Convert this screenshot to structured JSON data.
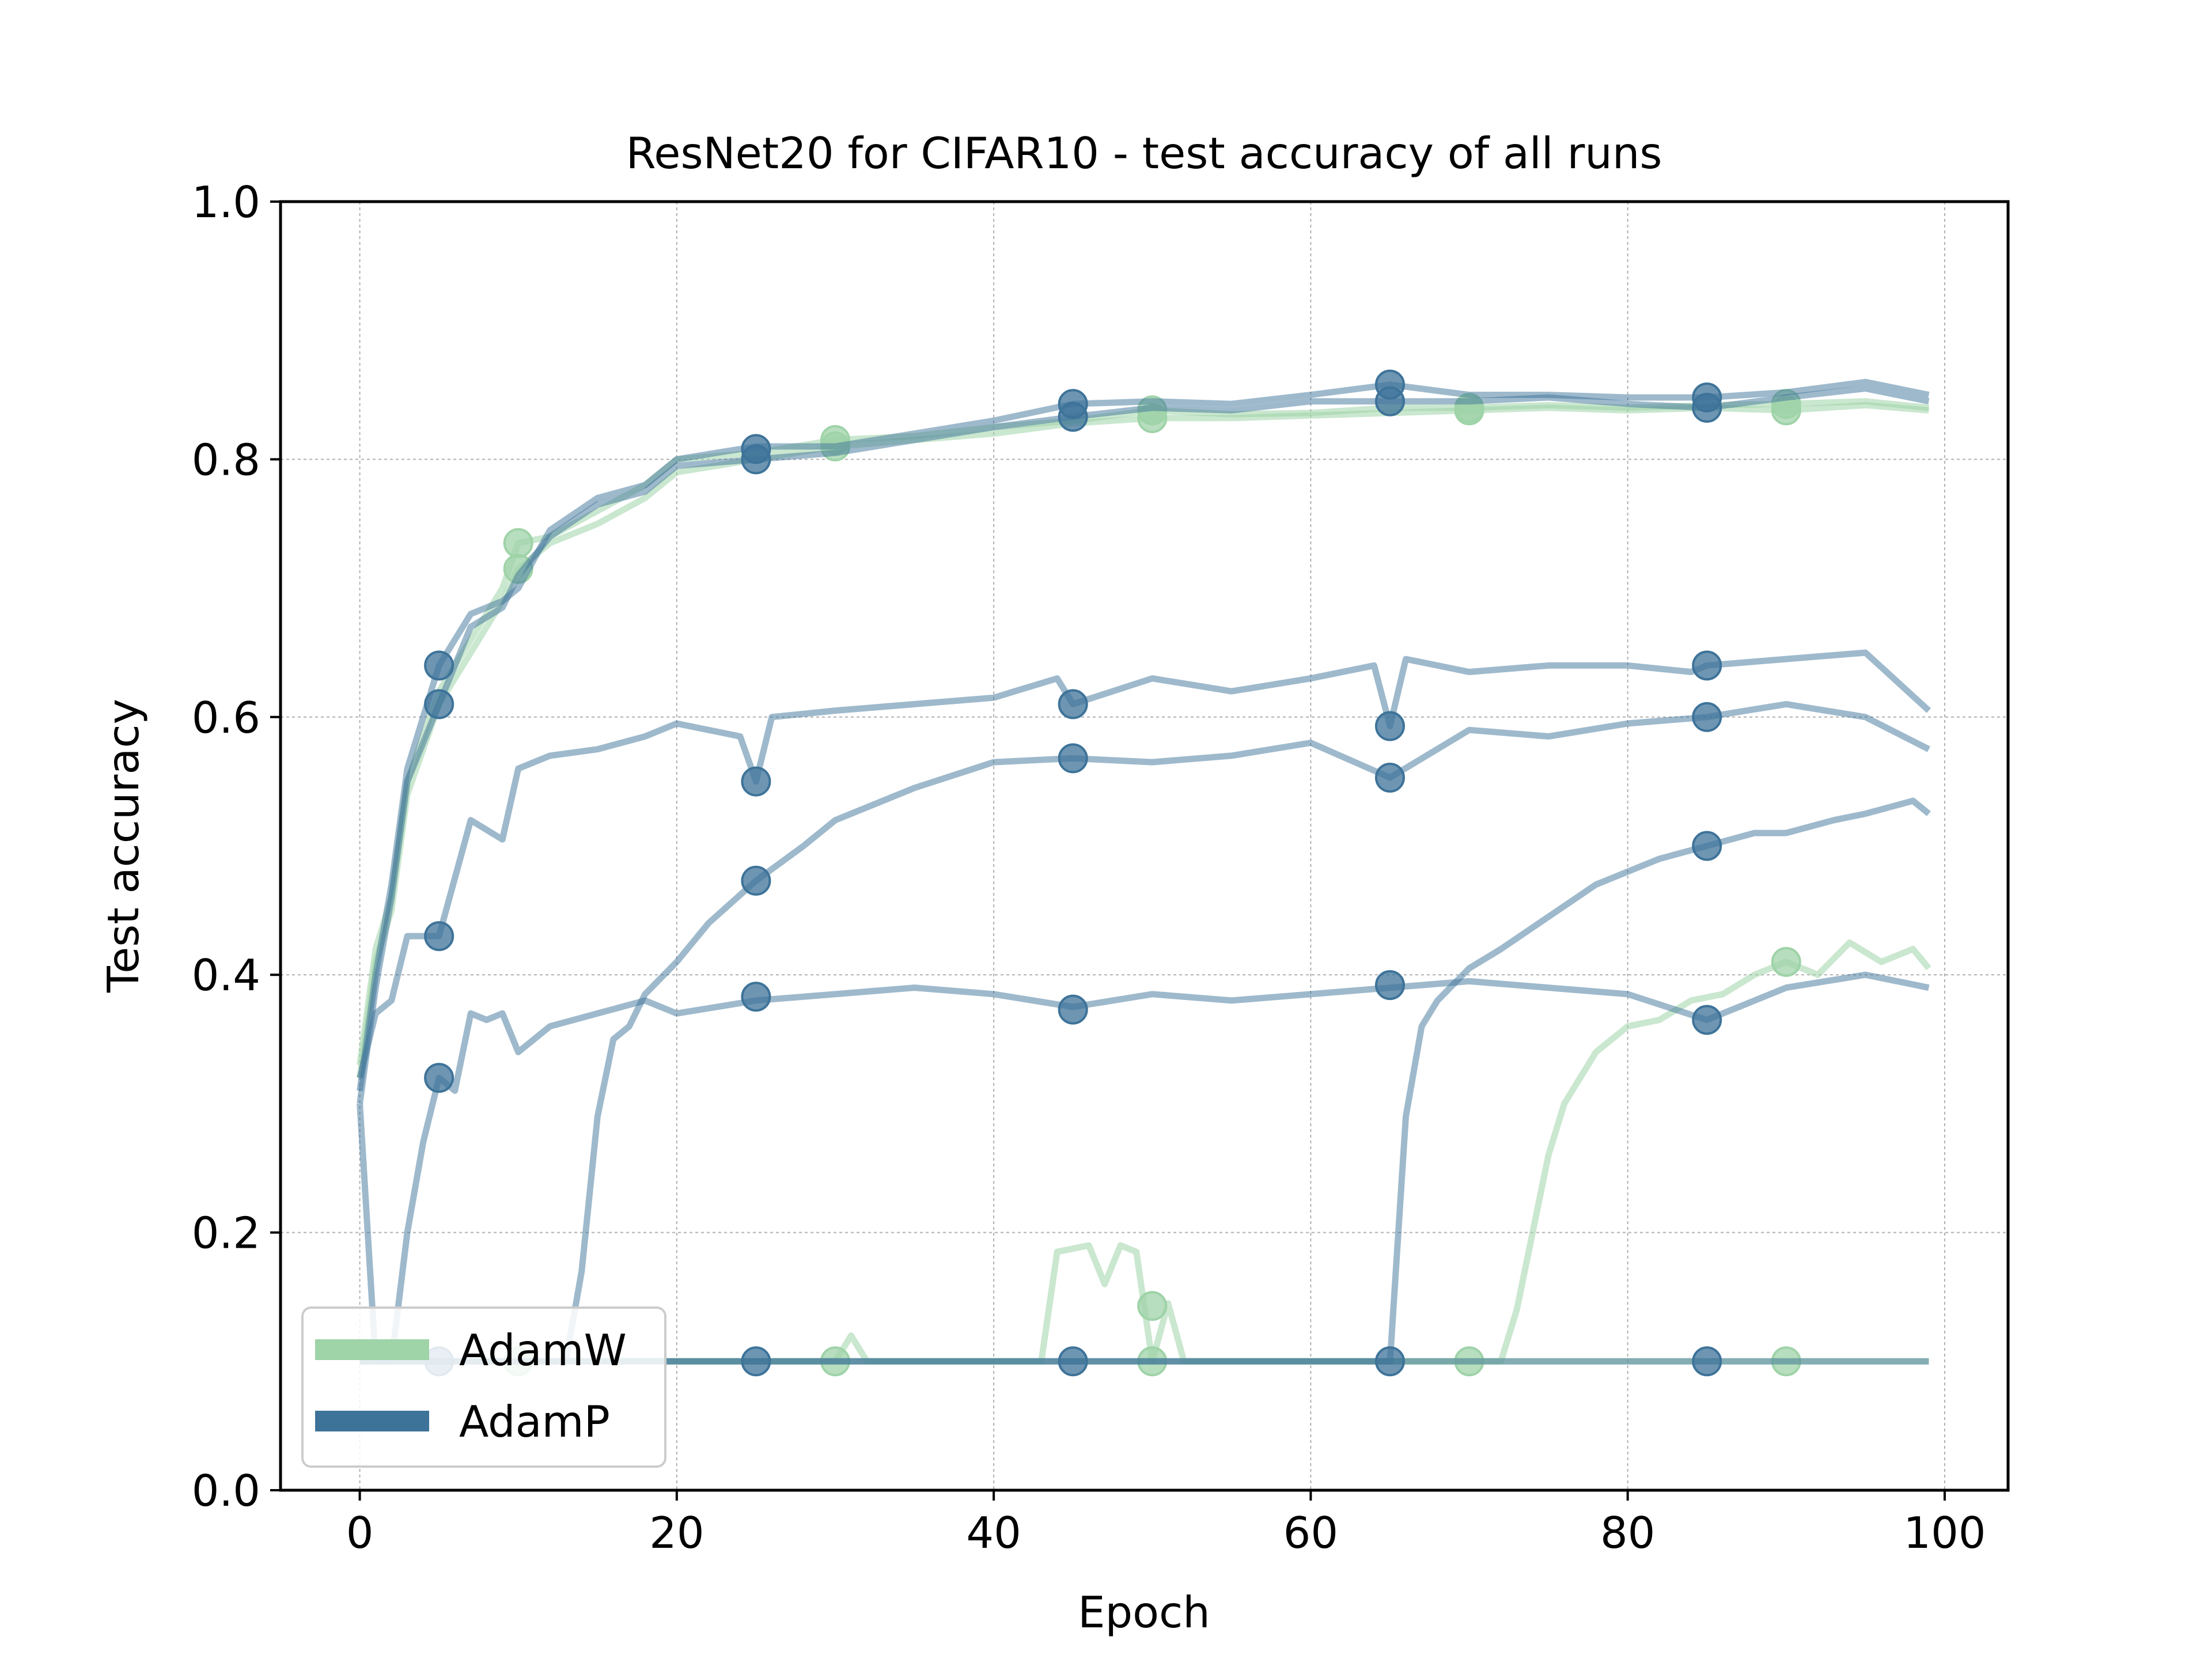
{
  "chart_data": {
    "type": "line",
    "title": "ResNet20 for CIFAR10 - test accuracy of all runs",
    "xlabel": "Epoch",
    "ylabel": "Test accuracy",
    "xlim": [
      -5,
      104
    ],
    "ylim": [
      0.0,
      1.0
    ],
    "xticks": [
      0,
      20,
      40,
      60,
      80,
      100
    ],
    "yticks": [
      0.0,
      0.2,
      0.4,
      0.6,
      0.8,
      1.0
    ],
    "xtick_labels": [
      "0",
      "20",
      "40",
      "60",
      "80",
      "100"
    ],
    "ytick_labels": [
      "0.0",
      "0.2",
      "0.4",
      "0.6",
      "0.8",
      "1.0"
    ],
    "grid": true,
    "legend_position": "lower-left",
    "legend": [
      {
        "name": "AdamW",
        "color": "#9fd3a8"
      },
      {
        "name": "AdamP",
        "color": "#3e7399"
      }
    ],
    "series": [
      {
        "group": "AdamW",
        "color": "#9fd3a8",
        "x": [
          0,
          1,
          2,
          3,
          5,
          7,
          9,
          10,
          12,
          15,
          18,
          20,
          25,
          30,
          35,
          40,
          45,
          50,
          55,
          60,
          65,
          70,
          75,
          80,
          85,
          90,
          95,
          99
        ],
        "y": [
          0.33,
          0.42,
          0.46,
          0.55,
          0.62,
          0.66,
          0.7,
          0.735,
          0.74,
          0.76,
          0.78,
          0.8,
          0.805,
          0.815,
          0.818,
          0.825,
          0.83,
          0.838,
          0.835,
          0.836,
          0.84,
          0.84,
          0.842,
          0.84,
          0.842,
          0.843,
          0.845,
          0.84
        ],
        "markers_x": [
          10,
          30,
          50,
          70,
          90
        ],
        "markers_y": [
          0.735,
          0.815,
          0.838,
          0.84,
          0.843
        ]
      },
      {
        "group": "AdamW",
        "color": "#9fd3a8",
        "x": [
          0,
          1,
          2,
          3,
          5,
          7,
          9,
          10,
          12,
          15,
          18,
          20,
          25,
          30,
          35,
          40,
          45,
          50,
          55,
          60,
          65,
          70,
          75,
          80,
          85,
          90,
          95,
          99
        ],
        "y": [
          0.32,
          0.41,
          0.45,
          0.54,
          0.61,
          0.65,
          0.69,
          0.715,
          0.735,
          0.75,
          0.77,
          0.79,
          0.8,
          0.81,
          0.815,
          0.82,
          0.828,
          0.832,
          0.832,
          0.834,
          0.836,
          0.838,
          0.84,
          0.838,
          0.84,
          0.838,
          0.842,
          0.838
        ],
        "markers_x": [
          10,
          30,
          50,
          70,
          90
        ],
        "markers_y": [
          0.715,
          0.81,
          0.832,
          0.838,
          0.838
        ]
      },
      {
        "group": "AdamW",
        "color": "#9fd3a8",
        "x": [
          0,
          5,
          10,
          20,
          30,
          31,
          32,
          40,
          43,
          44,
          46,
          47,
          48,
          49,
          50,
          51,
          52,
          60,
          72,
          73,
          74,
          75,
          76,
          78,
          80,
          82,
          84,
          86,
          88,
          90,
          92,
          94,
          96,
          98,
          99
        ],
        "y": [
          0.1,
          0.1,
          0.1,
          0.1,
          0.1,
          0.12,
          0.1,
          0.1,
          0.1,
          0.185,
          0.19,
          0.16,
          0.19,
          0.185,
          0.1,
          0.145,
          0.1,
          0.1,
          0.1,
          0.14,
          0.2,
          0.26,
          0.3,
          0.34,
          0.36,
          0.365,
          0.38,
          0.385,
          0.4,
          0.41,
          0.4,
          0.425,
          0.41,
          0.42,
          0.405
        ],
        "markers_x": [
          50,
          90
        ],
        "markers_y": [
          0.143,
          0.41
        ]
      },
      {
        "group": "AdamW",
        "color": "#9fd3a8",
        "x": [
          0,
          99
        ],
        "y": [
          0.1,
          0.1
        ],
        "markers_x": [
          10,
          30,
          50,
          70,
          90
        ],
        "markers_y": [
          0.1,
          0.1,
          0.1,
          0.1,
          0.1
        ]
      },
      {
        "group": "AdamP",
        "color": "#3e7399",
        "x": [
          0,
          1,
          2,
          3,
          5,
          7,
          9,
          10,
          12,
          15,
          18,
          20,
          25,
          30,
          35,
          40,
          45,
          50,
          55,
          60,
          65,
          70,
          75,
          80,
          85,
          90,
          95,
          99
        ],
        "y": [
          0.31,
          0.4,
          0.47,
          0.56,
          0.64,
          0.68,
          0.69,
          0.7,
          0.745,
          0.77,
          0.78,
          0.8,
          0.81,
          0.81,
          0.82,
          0.83,
          0.843,
          0.845,
          0.843,
          0.85,
          0.858,
          0.85,
          0.85,
          0.848,
          0.848,
          0.852,
          0.86,
          0.85
        ],
        "markers_x": [
          5,
          25,
          45,
          65,
          85
        ],
        "markers_y": [
          0.64,
          0.808,
          0.843,
          0.858,
          0.848
        ]
      },
      {
        "group": "AdamP",
        "color": "#3e7399",
        "x": [
          0,
          1,
          2,
          3,
          5,
          7,
          9,
          10,
          12,
          15,
          18,
          20,
          25,
          30,
          35,
          40,
          45,
          50,
          55,
          60,
          65,
          70,
          75,
          80,
          85,
          90,
          95,
          99
        ],
        "y": [
          0.3,
          0.39,
          0.46,
          0.55,
          0.61,
          0.67,
          0.685,
          0.71,
          0.74,
          0.765,
          0.775,
          0.795,
          0.8,
          0.805,
          0.815,
          0.825,
          0.833,
          0.84,
          0.838,
          0.845,
          0.845,
          0.845,
          0.848,
          0.843,
          0.84,
          0.848,
          0.855,
          0.845
        ],
        "markers_x": [
          5,
          25,
          45,
          65,
          85
        ],
        "markers_y": [
          0.61,
          0.8,
          0.833,
          0.845,
          0.84
        ]
      },
      {
        "group": "AdamP",
        "color": "#3e7399",
        "x": [
          0,
          1,
          2,
          3,
          5,
          7,
          9,
          10,
          12,
          15,
          18,
          20,
          24,
          25,
          26,
          30,
          35,
          40,
          44,
          45,
          50,
          55,
          60,
          64,
          65,
          66,
          70,
          75,
          80,
          84,
          85,
          90,
          95,
          99
        ],
        "y": [
          0.32,
          0.37,
          0.38,
          0.43,
          0.43,
          0.52,
          0.505,
          0.56,
          0.57,
          0.575,
          0.585,
          0.595,
          0.585,
          0.55,
          0.6,
          0.605,
          0.61,
          0.615,
          0.63,
          0.61,
          0.63,
          0.62,
          0.63,
          0.64,
          0.593,
          0.645,
          0.635,
          0.64,
          0.64,
          0.635,
          0.64,
          0.645,
          0.65,
          0.605
        ],
        "markers_x": [
          5,
          25,
          45,
          65,
          85
        ],
        "markers_y": [
          0.43,
          0.55,
          0.61,
          0.593,
          0.64
        ]
      },
      {
        "group": "AdamP",
        "color": "#3e7399",
        "x": [
          0,
          1,
          2,
          3,
          4,
          5,
          6,
          7,
          8,
          9,
          10,
          12,
          15,
          18,
          20,
          25,
          30,
          35,
          40,
          45,
          50,
          55,
          60,
          65,
          70,
          75,
          80,
          85,
          90,
          95,
          99
        ],
        "y": [
          0.3,
          0.1,
          0.1,
          0.2,
          0.27,
          0.32,
          0.31,
          0.37,
          0.365,
          0.37,
          0.34,
          0.36,
          0.37,
          0.38,
          0.37,
          0.38,
          0.385,
          0.39,
          0.385,
          0.375,
          0.385,
          0.38,
          0.385,
          0.39,
          0.395,
          0.39,
          0.385,
          0.365,
          0.39,
          0.4,
          0.39
        ],
        "markers_x": [
          5,
          25,
          45,
          65,
          85
        ],
        "markers_y": [
          0.32,
          0.383,
          0.373,
          0.392,
          0.365
        ]
      },
      {
        "group": "AdamP",
        "color": "#3e7399",
        "x": [
          0,
          5,
          13,
          14,
          15,
          16,
          17,
          18,
          20,
          22,
          25,
          28,
          30,
          35,
          40,
          45,
          50,
          55,
          60,
          65,
          70,
          75,
          80,
          85,
          90,
          95,
          99
        ],
        "y": [
          0.1,
          0.1,
          0.1,
          0.17,
          0.29,
          0.35,
          0.36,
          0.385,
          0.41,
          0.44,
          0.473,
          0.5,
          0.52,
          0.545,
          0.565,
          0.568,
          0.565,
          0.57,
          0.58,
          0.553,
          0.59,
          0.585,
          0.595,
          0.6,
          0.61,
          0.6,
          0.575
        ],
        "markers_x": [
          25,
          45,
          65,
          85
        ],
        "markers_y": [
          0.473,
          0.568,
          0.553,
          0.6
        ]
      },
      {
        "group": "AdamP",
        "color": "#3e7399",
        "x": [
          0,
          65,
          66,
          67,
          68,
          70,
          72,
          75,
          78,
          80,
          82,
          85,
          88,
          90,
          93,
          95,
          98,
          99
        ],
        "y": [
          0.1,
          0.1,
          0.29,
          0.36,
          0.38,
          0.405,
          0.42,
          0.445,
          0.47,
          0.48,
          0.49,
          0.5,
          0.51,
          0.51,
          0.52,
          0.525,
          0.535,
          0.525
        ],
        "markers_x": [
          65,
          85
        ],
        "markers_y": [
          0.1,
          0.5
        ]
      },
      {
        "group": "AdamP",
        "color": "#3e7399",
        "x": [
          0,
          99
        ],
        "y": [
          0.1,
          0.1
        ],
        "markers_x": [
          5,
          25,
          45,
          85
        ],
        "markers_y": [
          0.1,
          0.1,
          0.1,
          0.1
        ]
      }
    ]
  }
}
